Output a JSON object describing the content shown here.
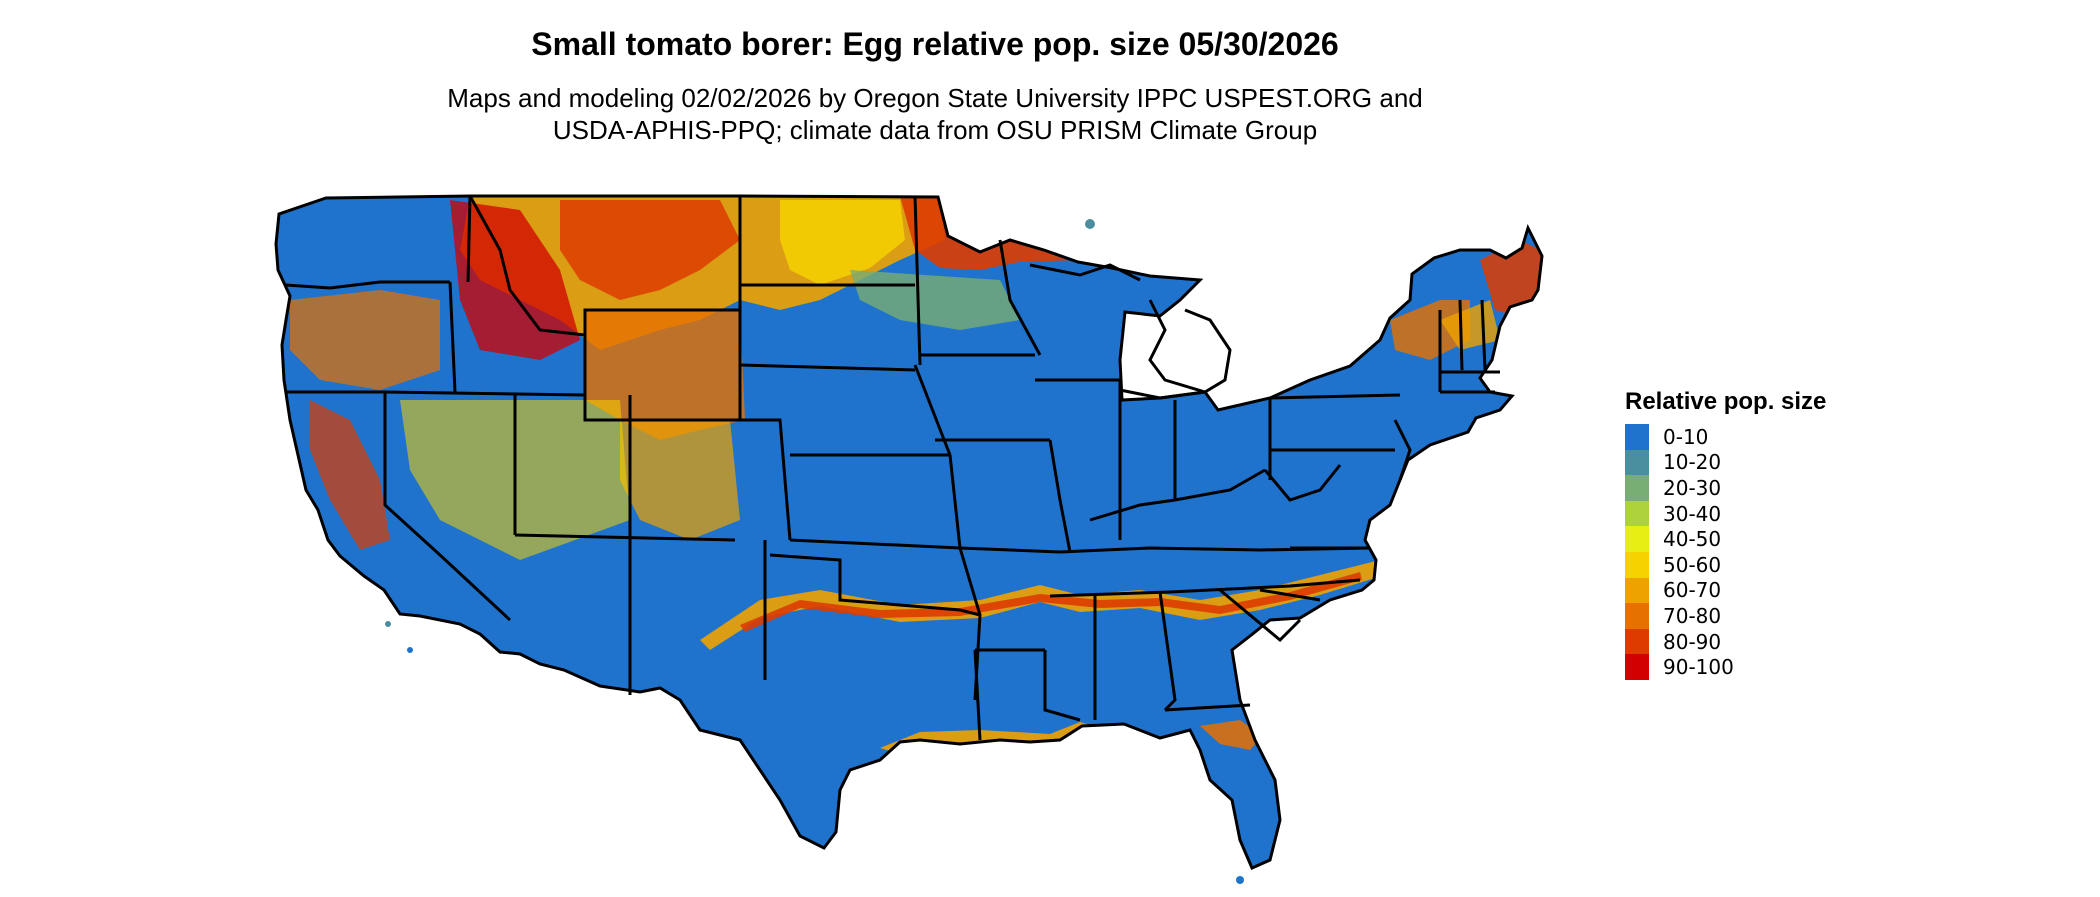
{
  "header": {
    "title": "Small tomato borer: Egg relative pop. size 05/30/2026",
    "subtitle_line1": "Maps and modeling 02/02/2026 by Oregon State University IPPC USPEST.ORG and",
    "subtitle_line2": "USDA-APHIS-PPQ; climate data from OSU PRISM Climate Group"
  },
  "legend": {
    "title": "Relative pop. size",
    "items": [
      {
        "label": "0-10",
        "color": "#1f73cc"
      },
      {
        "label": "10-20",
        "color": "#4a8fa0"
      },
      {
        "label": "20-30",
        "color": "#78ad74"
      },
      {
        "label": "30-40",
        "color": "#aed23c"
      },
      {
        "label": "40-50",
        "color": "#e6ee14"
      },
      {
        "label": "50-60",
        "color": "#f6d200"
      },
      {
        "label": "60-70",
        "color": "#eea200"
      },
      {
        "label": "70-80",
        "color": "#e67000"
      },
      {
        "label": "80-90",
        "color": "#dc3c00"
      },
      {
        "label": "90-100",
        "color": "#d20000"
      }
    ]
  },
  "map": {
    "region": "Contiguous United States",
    "background_class_color": "#1f73cc",
    "state_border_color": "#000000"
  }
}
